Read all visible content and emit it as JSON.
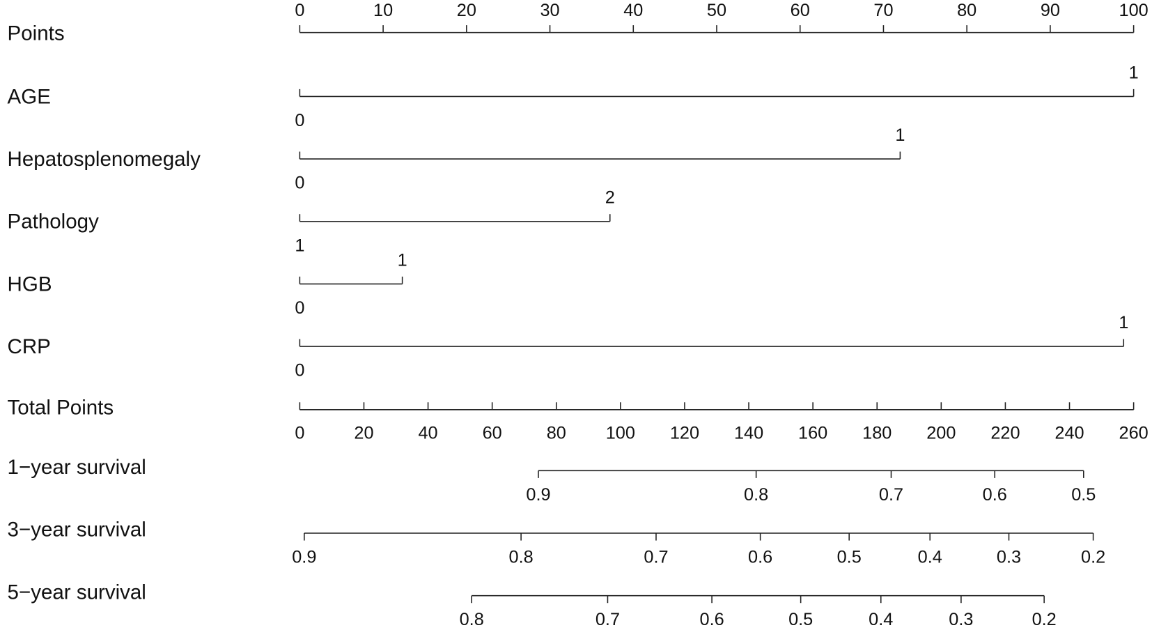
{
  "chart_data": {
    "type": "nomogram",
    "points_axis": {
      "label": "Points",
      "xlim": [
        0,
        100
      ],
      "xticks": [
        0,
        10,
        20,
        30,
        40,
        50,
        60,
        70,
        80,
        90,
        100
      ]
    },
    "variables": [
      {
        "name": "AGE",
        "levels": [
          {
            "level": 0,
            "points": 0
          },
          {
            "level": 1,
            "points": 100
          }
        ]
      },
      {
        "name": "Hepatosplenomegaly",
        "levels": [
          {
            "level": 0,
            "points": 0
          },
          {
            "level": 1,
            "points": 72
          }
        ]
      },
      {
        "name": "Pathology",
        "levels": [
          {
            "level": 1,
            "points": 0
          },
          {
            "level": 2,
            "points": 37.2
          }
        ]
      },
      {
        "name": "HGB",
        "levels": [
          {
            "level": 0,
            "points": 0
          },
          {
            "level": 1,
            "points": 12.3
          }
        ]
      },
      {
        "name": "CRP",
        "levels": [
          {
            "level": 0,
            "points": 0
          },
          {
            "level": 1,
            "points": 98.8
          }
        ]
      }
    ],
    "total_points_axis": {
      "label": "Total Points",
      "xlim": [
        0,
        260
      ],
      "xticks": [
        0,
        20,
        40,
        60,
        80,
        100,
        120,
        140,
        160,
        180,
        200,
        220,
        240,
        260
      ]
    },
    "survival_scales": [
      {
        "name": "1−year survival",
        "ticks": [
          {
            "survival": 0.9,
            "total_points": 74.4
          },
          {
            "survival": 0.8,
            "total_points": 142.3
          },
          {
            "survival": 0.7,
            "total_points": 184.4
          },
          {
            "survival": 0.6,
            "total_points": 216.7
          },
          {
            "survival": 0.5,
            "total_points": 244.4
          }
        ]
      },
      {
        "name": "3−year survival",
        "ticks": [
          {
            "survival": 0.9,
            "total_points": 1.4
          },
          {
            "survival": 0.8,
            "total_points": 69.0
          },
          {
            "survival": 0.7,
            "total_points": 111.1
          },
          {
            "survival": 0.6,
            "total_points": 143.6
          },
          {
            "survival": 0.5,
            "total_points": 171.3
          },
          {
            "survival": 0.4,
            "total_points": 196.5
          },
          {
            "survival": 0.3,
            "total_points": 221.1
          },
          {
            "survival": 0.2,
            "total_points": 247.4
          }
        ]
      },
      {
        "name": "5−year survival",
        "ticks": [
          {
            "survival": 0.8,
            "total_points": 53.6
          },
          {
            "survival": 0.7,
            "total_points": 96.0
          },
          {
            "survival": 0.6,
            "total_points": 128.5
          },
          {
            "survival": 0.5,
            "total_points": 156.2
          },
          {
            "survival": 0.4,
            "total_points": 181.2
          },
          {
            "survival": 0.3,
            "total_points": 206.2
          },
          {
            "survival": 0.2,
            "total_points": 232.1
          }
        ]
      }
    ]
  }
}
